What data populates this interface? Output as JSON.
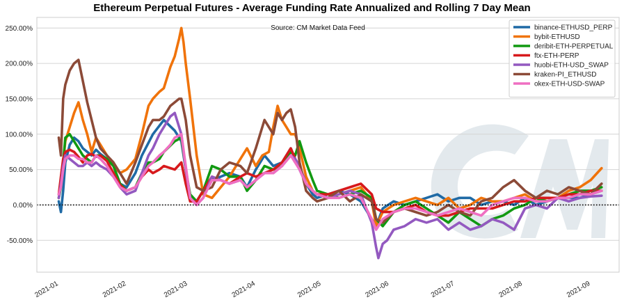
{
  "chart_data": {
    "type": "line",
    "title": "Ethereum Perpetual Futures - Average Funding Rate Annualized and Rolling 7 Day Mean",
    "annotation": "Source: CM Market Data Feed",
    "watermark": "CM",
    "xlabel": "",
    "ylabel": "",
    "ylim": [
      -95,
      265
    ],
    "xlim": [
      -8,
      258
    ],
    "yticks": [
      -50,
      0,
      50,
      100,
      150,
      200,
      250
    ],
    "ytick_labels": [
      "-50.00%",
      "0.00%",
      "50.00%",
      "100.00%",
      "150.00%",
      "200.00%",
      "250.00%"
    ],
    "xticks": [
      0,
      31,
      59,
      90,
      120,
      151,
      181,
      212,
      243
    ],
    "xtick_labels": [
      "2021-01",
      "2021-02",
      "2021-03",
      "2021-04",
      "2021-05",
      "2021-06",
      "2021-07",
      "2021-08",
      "2021-09"
    ],
    "x_unit": "days since 2021-01-01",
    "grid": "horizontal",
    "legend_position": "top-right",
    "zero_line": "dotted",
    "series": [
      {
        "name": "binance-ETHUSD_PERP",
        "color": "#1f6aa5",
        "x": [
          2,
          3,
          4,
          5,
          7,
          9,
          11,
          13,
          15,
          17,
          19,
          21,
          24,
          27,
          30,
          33,
          37,
          40,
          45,
          50,
          55,
          58,
          60,
          62,
          65,
          68,
          72,
          76,
          80,
          85,
          88,
          92,
          96,
          100,
          104,
          108,
          110,
          112,
          115,
          118,
          120,
          125,
          130,
          135,
          140,
          145,
          147,
          150,
          155,
          160,
          165,
          170,
          175,
          180,
          185,
          190,
          195,
          200,
          205,
          210,
          215,
          220,
          225,
          230,
          235,
          240,
          245,
          250
        ],
        "y": [
          5,
          -10,
          20,
          60,
          85,
          95,
          90,
          80,
          75,
          70,
          78,
          72,
          65,
          55,
          30,
          25,
          45,
          70,
          100,
          120,
          105,
          90,
          50,
          10,
          5,
          20,
          35,
          40,
          45,
          40,
          25,
          50,
          70,
          55,
          60,
          80,
          65,
          50,
          30,
          15,
          10,
          15,
          20,
          15,
          5,
          -20,
          -30,
          -5,
          5,
          0,
          5,
          10,
          15,
          5,
          10,
          10,
          0,
          5,
          5,
          0,
          10,
          0,
          5,
          10,
          10,
          10,
          15,
          20
        ]
      },
      {
        "name": "bybit-ETHUSD",
        "color": "#f0730a",
        "x": [
          2,
          3,
          4,
          5,
          7,
          9,
          11,
          13,
          15,
          17,
          19,
          21,
          24,
          27,
          30,
          33,
          37,
          40,
          43,
          45,
          48,
          50,
          53,
          55,
          57,
          58,
          59,
          60,
          62,
          65,
          68,
          72,
          76,
          80,
          85,
          88,
          92,
          95,
          98,
          100,
          102,
          104,
          106,
          108,
          110,
          112,
          115,
          118,
          120,
          125,
          130,
          135,
          140,
          145,
          147,
          150,
          155,
          160,
          165,
          170,
          175,
          180,
          185,
          190,
          195,
          200,
          205,
          210,
          215,
          220,
          225,
          230,
          235,
          240,
          245,
          250
        ],
        "y": [
          10,
          30,
          60,
          90,
          110,
          130,
          145,
          120,
          100,
          75,
          95,
          85,
          70,
          55,
          45,
          50,
          65,
          100,
          140,
          150,
          160,
          165,
          195,
          210,
          235,
          250,
          230,
          200,
          150,
          70,
          15,
          10,
          25,
          40,
          65,
          80,
          55,
          70,
          75,
          110,
          140,
          120,
          110,
          100,
          100,
          80,
          40,
          20,
          15,
          10,
          15,
          20,
          25,
          5,
          -30,
          -10,
          0,
          5,
          10,
          5,
          0,
          10,
          -5,
          0,
          10,
          5,
          5,
          10,
          15,
          5,
          10,
          10,
          20,
          25,
          35,
          52
        ]
      },
      {
        "name": "deribit-ETH-PERPETUAL",
        "color": "#119911",
        "x": [
          2,
          3,
          4,
          5,
          7,
          9,
          11,
          13,
          15,
          17,
          19,
          21,
          24,
          27,
          30,
          33,
          37,
          40,
          43,
          45,
          48,
          50,
          55,
          58,
          60,
          62,
          65,
          68,
          72,
          76,
          80,
          85,
          88,
          92,
          96,
          100,
          104,
          108,
          110,
          112,
          115,
          118,
          120,
          125,
          130,
          135,
          140,
          145,
          147,
          150,
          155,
          160,
          165,
          170,
          175,
          180,
          185,
          190,
          195,
          200,
          205,
          210,
          215,
          220,
          225,
          230,
          235,
          240,
          245,
          250
        ],
        "y": [
          10,
          25,
          60,
          95,
          100,
          90,
          80,
          70,
          65,
          60,
          70,
          70,
          65,
          55,
          30,
          20,
          25,
          45,
          60,
          60,
          65,
          75,
          90,
          95,
          50,
          15,
          5,
          20,
          55,
          50,
          40,
          40,
          20,
          35,
          55,
          50,
          55,
          75,
          70,
          90,
          60,
          35,
          20,
          15,
          10,
          15,
          20,
          10,
          -20,
          -30,
          -10,
          0,
          5,
          -5,
          -15,
          -25,
          -10,
          -20,
          -30,
          -20,
          -15,
          -5,
          0,
          10,
          5,
          10,
          15,
          20,
          20,
          25
        ]
      },
      {
        "name": "ftx-ETH-PERP",
        "color": "#d7191c",
        "x": [
          2,
          3,
          4,
          5,
          7,
          9,
          11,
          13,
          15,
          17,
          19,
          21,
          24,
          27,
          30,
          33,
          37,
          40,
          43,
          45,
          48,
          50,
          55,
          58,
          60,
          62,
          65,
          68,
          72,
          76,
          80,
          85,
          88,
          92,
          96,
          100,
          104,
          108,
          110,
          112,
          115,
          118,
          120,
          125,
          130,
          135,
          140,
          145,
          147,
          150,
          155,
          160,
          165,
          170,
          175,
          180,
          185,
          190,
          195,
          200,
          205,
          210,
          215,
          220,
          225,
          230,
          235,
          240,
          245,
          250
        ],
        "y": [
          15,
          40,
          65,
          75,
          78,
          75,
          68,
          60,
          70,
          72,
          68,
          70,
          62,
          45,
          28,
          20,
          25,
          40,
          50,
          45,
          50,
          55,
          50,
          60,
          30,
          5,
          5,
          20,
          40,
          35,
          30,
          40,
          45,
          40,
          45,
          50,
          60,
          80,
          65,
          55,
          30,
          20,
          15,
          15,
          20,
          25,
          30,
          15,
          -5,
          -10,
          -10,
          -5,
          0,
          -10,
          -15,
          -15,
          -10,
          -5,
          -5,
          -5,
          0,
          5,
          5,
          10,
          10,
          10,
          15,
          15,
          20,
          20
        ]
      },
      {
        "name": "huobi-ETH-USD_SWAP",
        "color": "#9359c0",
        "x": [
          2,
          3,
          4,
          5,
          7,
          9,
          11,
          13,
          15,
          17,
          19,
          21,
          24,
          27,
          30,
          33,
          37,
          40,
          43,
          45,
          48,
          50,
          53,
          55,
          58,
          60,
          62,
          65,
          68,
          72,
          76,
          80,
          85,
          88,
          92,
          96,
          100,
          104,
          108,
          110,
          112,
          115,
          118,
          120,
          125,
          130,
          135,
          140,
          145,
          147,
          148,
          150,
          152,
          155,
          160,
          165,
          170,
          175,
          180,
          185,
          190,
          195,
          200,
          205,
          210,
          215,
          220,
          225,
          230,
          235,
          240,
          245,
          250
        ],
        "y": [
          10,
          30,
          55,
          70,
          65,
          60,
          55,
          55,
          60,
          55,
          60,
          55,
          50,
          40,
          25,
          15,
          20,
          45,
          70,
          80,
          100,
          110,
          125,
          130,
          100,
          50,
          10,
          0,
          10,
          40,
          35,
          30,
          35,
          25,
          35,
          45,
          45,
          55,
          70,
          65,
          55,
          30,
          20,
          15,
          10,
          15,
          20,
          15,
          -25,
          -60,
          -75,
          -55,
          -50,
          -35,
          -30,
          -20,
          -25,
          -20,
          -35,
          -25,
          -35,
          -30,
          -20,
          -25,
          -35,
          -5,
          0,
          -5,
          10,
          5,
          10,
          12,
          13
        ]
      },
      {
        "name": "kraken-PI_ETHUSD",
        "color": "#8c4a37",
        "x": [
          2,
          3,
          4,
          5,
          7,
          9,
          11,
          13,
          15,
          17,
          19,
          21,
          24,
          27,
          30,
          33,
          37,
          40,
          43,
          45,
          48,
          50,
          53,
          55,
          57,
          58,
          60,
          62,
          65,
          68,
          72,
          76,
          80,
          85,
          88,
          92,
          96,
          100,
          102,
          104,
          106,
          108,
          110,
          112,
          115,
          118,
          120,
          125,
          130,
          135,
          140,
          145,
          147,
          150,
          155,
          160,
          165,
          170,
          175,
          180,
          185,
          190,
          195,
          200,
          205,
          210,
          215,
          220,
          225,
          230,
          235,
          240,
          245,
          250
        ],
        "y": [
          95,
          70,
          150,
          170,
          190,
          200,
          205,
          175,
          145,
          120,
          95,
          80,
          70,
          60,
          45,
          30,
          60,
          85,
          110,
          120,
          120,
          125,
          140,
          145,
          150,
          150,
          120,
          70,
          25,
          20,
          25,
          50,
          60,
          55,
          45,
          80,
          120,
          100,
          130,
          120,
          130,
          135,
          110,
          60,
          20,
          10,
          5,
          10,
          20,
          5,
          15,
          5,
          -20,
          -25,
          -10,
          -5,
          -10,
          -15,
          -10,
          0,
          -10,
          -15,
          5,
          10,
          25,
          35,
          20,
          10,
          20,
          15,
          25,
          20,
          15,
          30
        ]
      },
      {
        "name": "okex-ETH-USD-SWAP",
        "color": "#ef6fc2",
        "x": [
          2,
          3,
          4,
          5,
          7,
          9,
          11,
          13,
          15,
          17,
          19,
          21,
          24,
          27,
          30,
          33,
          37,
          40,
          43,
          45,
          48,
          50,
          53,
          55,
          58,
          60,
          62,
          65,
          68,
          72,
          76,
          80,
          85,
          88,
          92,
          96,
          100,
          104,
          108,
          110,
          112,
          115,
          118,
          120,
          125,
          130,
          135,
          140,
          145,
          147,
          150,
          155,
          160,
          165,
          170,
          175,
          180,
          185,
          190,
          195,
          200,
          205,
          210,
          215,
          220,
          225,
          230,
          235,
          240,
          245,
          250
        ],
        "y": [
          15,
          25,
          50,
          65,
          70,
          70,
          65,
          65,
          60,
          60,
          70,
          65,
          55,
          40,
          25,
          20,
          25,
          40,
          55,
          60,
          70,
          75,
          85,
          95,
          100,
          55,
          10,
          0,
          10,
          35,
          35,
          30,
          35,
          25,
          35,
          45,
          45,
          55,
          70,
          60,
          50,
          30,
          20,
          15,
          10,
          10,
          15,
          10,
          -20,
          -35,
          -20,
          -10,
          -5,
          -5,
          -10,
          -15,
          -10,
          -5,
          -10,
          -15,
          0,
          5,
          10,
          10,
          5,
          5,
          10,
          10,
          15,
          15,
          20
        ]
      }
    ]
  }
}
